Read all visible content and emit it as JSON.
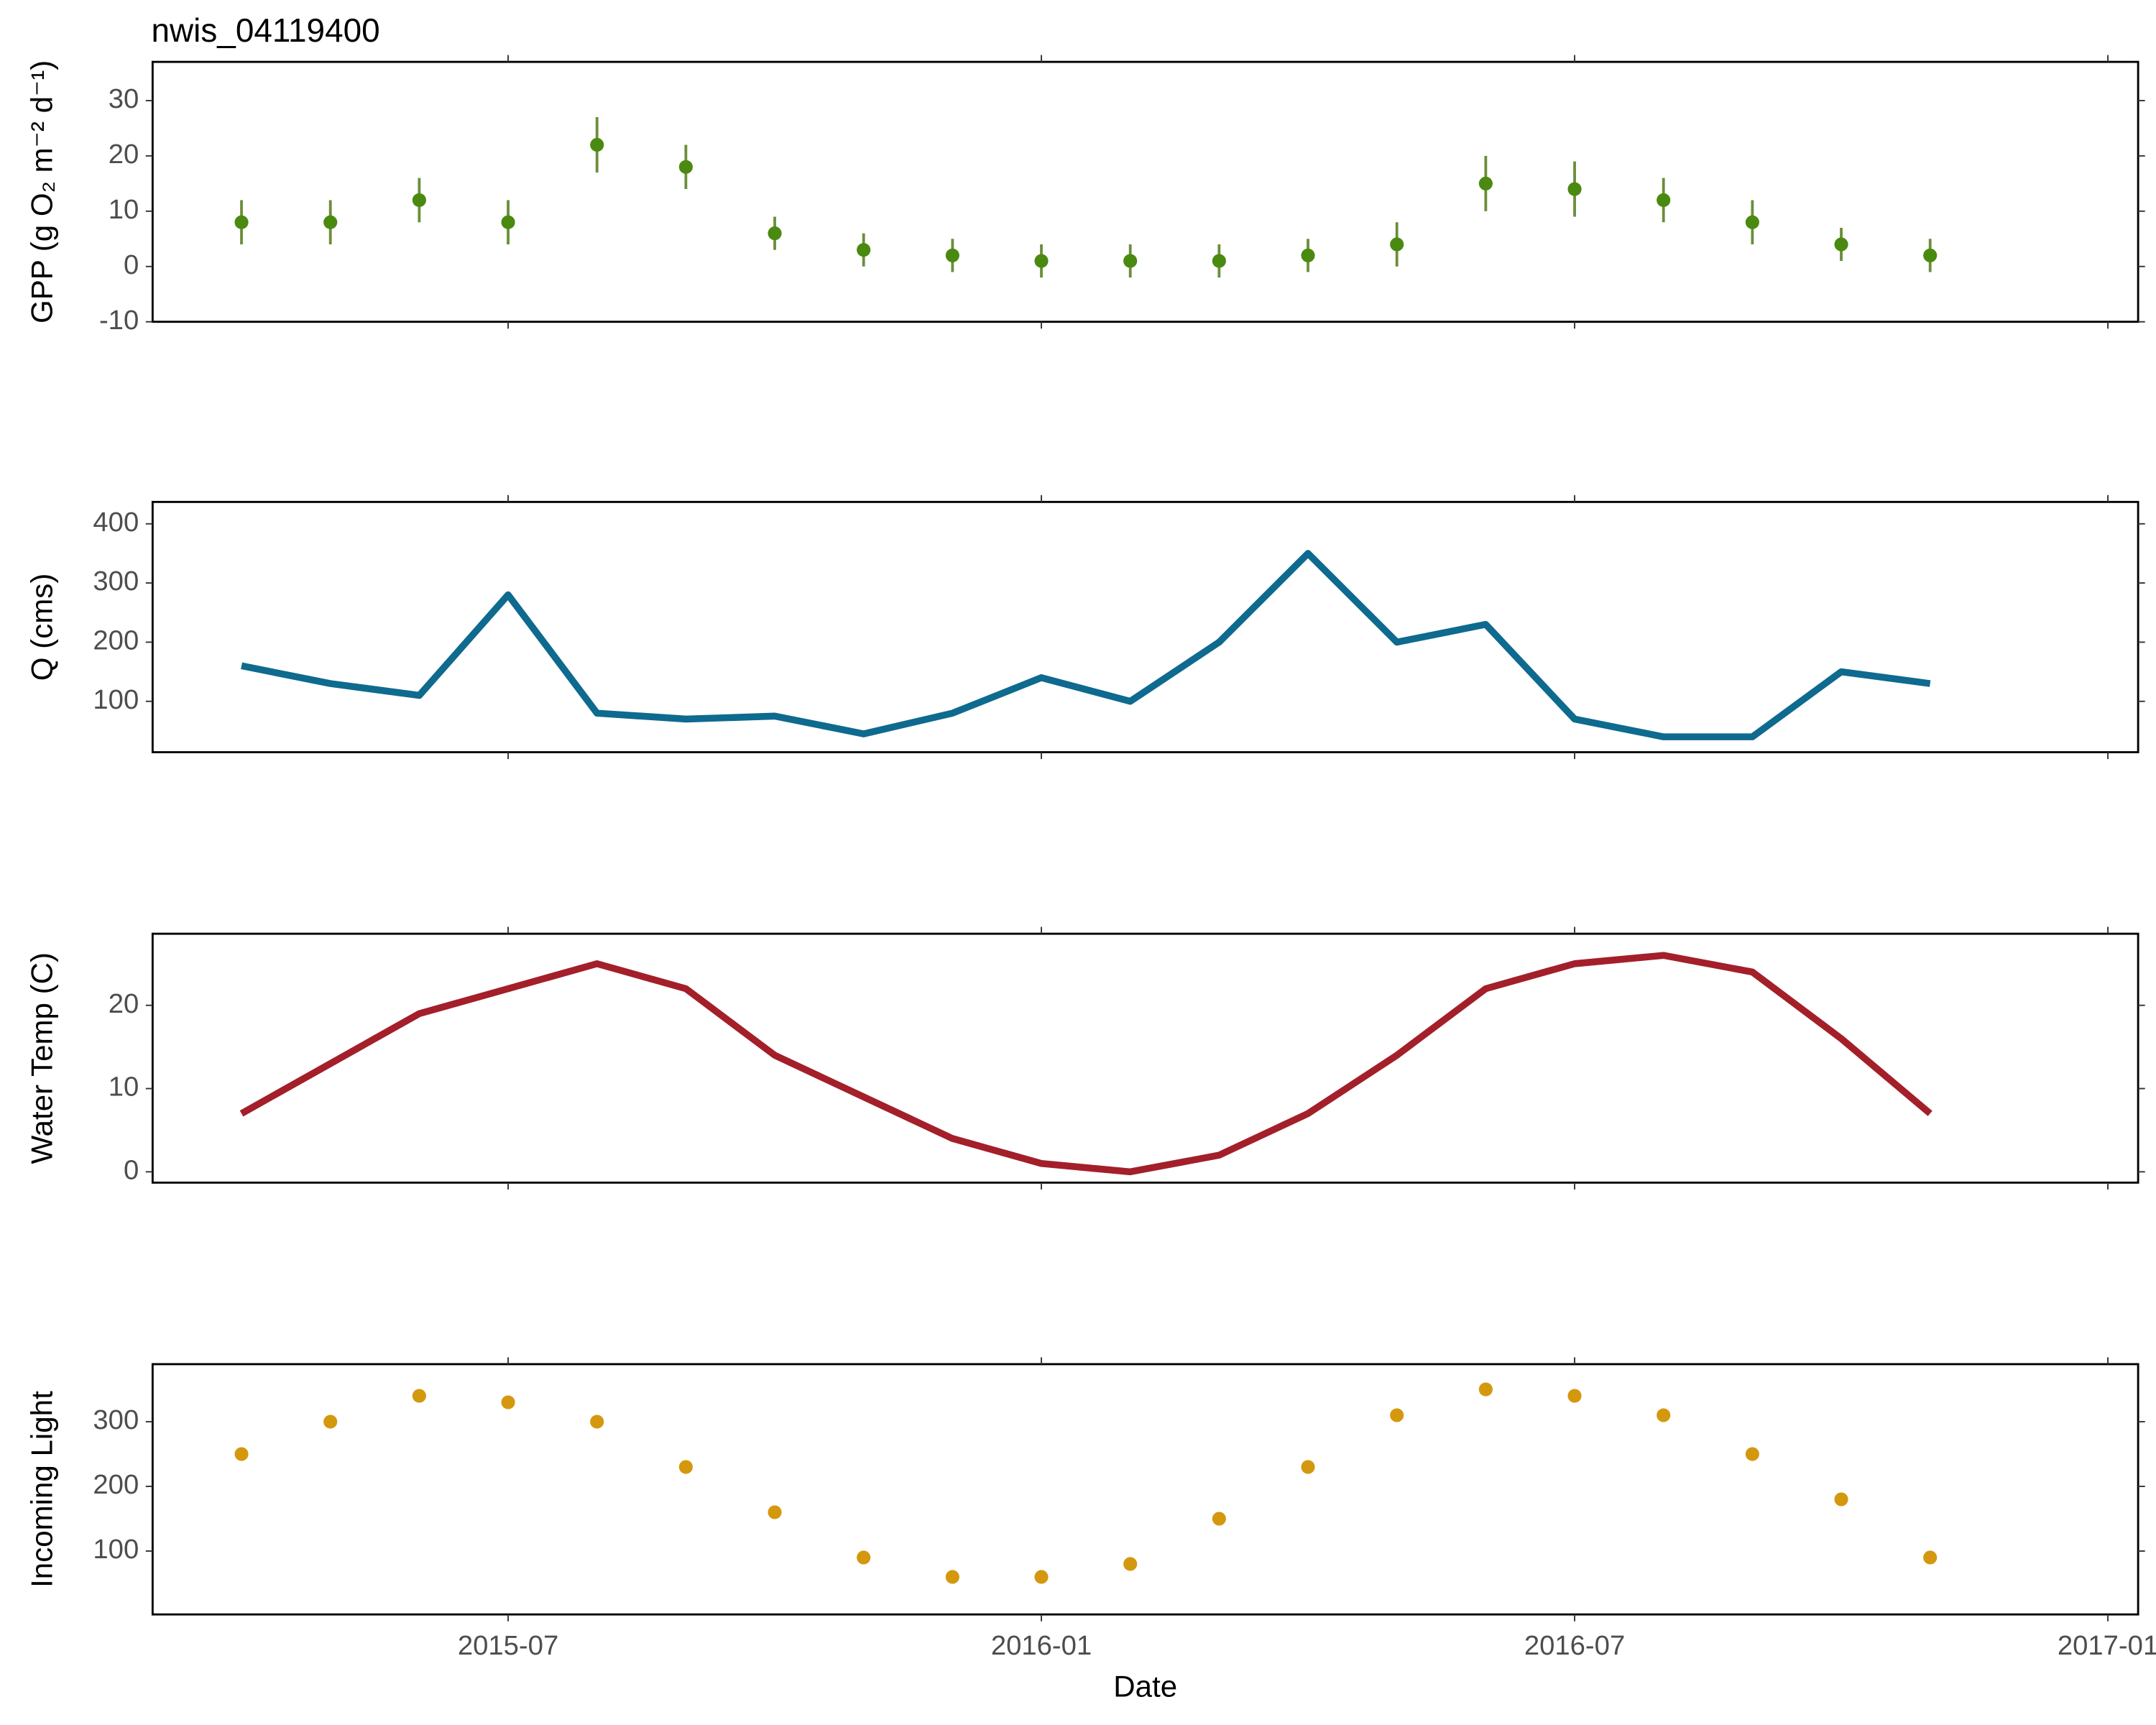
{
  "chart_data": [
    {
      "type": "scatter",
      "title": "nwis_04119400",
      "y_label": "GPP (g  O₂ m⁻² d⁻¹)",
      "x": [
        "2015-04",
        "2015-05",
        "2015-06",
        "2015-07",
        "2015-08",
        "2015-09",
        "2015-10",
        "2015-11",
        "2015-12",
        "2016-01",
        "2016-02",
        "2016-03",
        "2016-04",
        "2016-05",
        "2016-06",
        "2016-07",
        "2016-08",
        "2016-09",
        "2016-10",
        "2016-11"
      ],
      "values": [
        8,
        8,
        12,
        8,
        22,
        18,
        6,
        3,
        2,
        1,
        1,
        1,
        2,
        4,
        15,
        14,
        12,
        8,
        4,
        2
      ],
      "errors": [
        4,
        4,
        4,
        4,
        5,
        4,
        3,
        3,
        3,
        3,
        3,
        3,
        3,
        4,
        5,
        5,
        4,
        4,
        3,
        3
      ],
      "color": "#4a8a10",
      "error_color": "#6b8e3a",
      "xlim": [
        "2015-03",
        "2017-01"
      ],
      "xticks": [
        "2015-07",
        "2016-01",
        "2016-07",
        "2017-01"
      ],
      "ylim": [
        -10,
        37
      ],
      "yticks": [
        -10,
        0,
        10,
        20,
        30
      ]
    },
    {
      "type": "line",
      "y_label": "Q (cms)",
      "x": [
        "2015-04",
        "2015-05",
        "2015-06",
        "2015-07",
        "2015-08",
        "2015-09",
        "2015-10",
        "2015-11",
        "2015-12",
        "2016-01",
        "2016-02",
        "2016-03",
        "2016-04",
        "2016-05",
        "2016-06",
        "2016-07",
        "2016-08",
        "2016-09",
        "2016-10",
        "2016-11"
      ],
      "values": [
        160,
        130,
        110,
        280,
        80,
        70,
        75,
        45,
        80,
        140,
        100,
        200,
        350,
        200,
        230,
        70,
        40,
        40,
        150,
        130
      ],
      "color": "#0e6a8e",
      "xlim": [
        "2015-03",
        "2017-01"
      ],
      "xticks": [
        "2015-07",
        "2016-01",
        "2016-07",
        "2017-01"
      ],
      "ylim": [
        14,
        437
      ],
      "yticks": [
        100,
        200,
        300,
        400
      ]
    },
    {
      "type": "line",
      "y_label": "Water Temp (C)",
      "x": [
        "2015-04",
        "2015-05",
        "2015-06",
        "2015-07",
        "2015-08",
        "2015-09",
        "2015-10",
        "2015-11",
        "2015-12",
        "2016-01",
        "2016-02",
        "2016-03",
        "2016-04",
        "2016-05",
        "2016-06",
        "2016-07",
        "2016-08",
        "2016-09",
        "2016-10",
        "2016-11"
      ],
      "values": [
        7,
        13,
        19,
        22,
        25,
        22,
        14,
        9,
        4,
        1,
        0,
        2,
        7,
        14,
        22,
        25,
        26,
        24,
        16,
        7
      ],
      "color": "#a31f2a",
      "xlim": [
        "2015-03",
        "2017-01"
      ],
      "xticks": [
        "2015-07",
        "2016-01",
        "2016-07",
        "2017-01"
      ],
      "ylim": [
        -1.3,
        28.6
      ],
      "yticks": [
        0,
        10,
        20
      ]
    },
    {
      "type": "scatter",
      "y_label": "Incoming Light",
      "x_label": "Date",
      "x": [
        "2015-04",
        "2015-05",
        "2015-06",
        "2015-07",
        "2015-08",
        "2015-09",
        "2015-10",
        "2015-11",
        "2015-12",
        "2016-01",
        "2016-02",
        "2016-03",
        "2016-04",
        "2016-05",
        "2016-06",
        "2016-07",
        "2016-08",
        "2016-09",
        "2016-10",
        "2016-11"
      ],
      "values": [
        250,
        300,
        340,
        330,
        300,
        230,
        160,
        90,
        60,
        60,
        80,
        150,
        230,
        310,
        350,
        340,
        310,
        250,
        180,
        90
      ],
      "color": "#d4980f",
      "xlim": [
        "2015-03",
        "2017-01"
      ],
      "xticks": [
        "2015-07",
        "2016-01",
        "2016-07",
        "2017-01"
      ],
      "ylim": [
        2,
        389
      ],
      "yticks": [
        100,
        200,
        300
      ]
    }
  ]
}
